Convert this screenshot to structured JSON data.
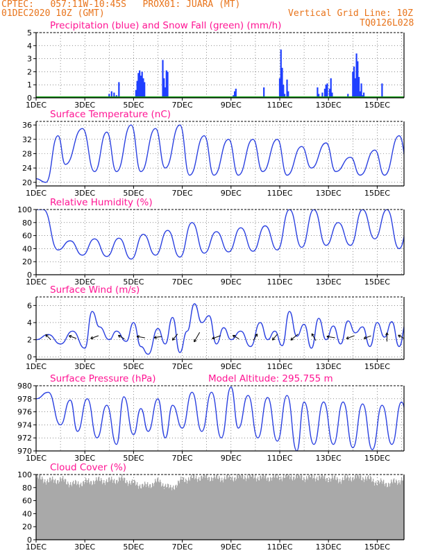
{
  "header": {
    "line1": "CPTEC:   057:11W-10:45S   PROX01: JUARA (MT)",
    "line2": "01DEC2020 10Z (GMT)",
    "grid_note": "Vertical Grid Line: 10Z",
    "code": "TQ0126L028"
  },
  "colors": {
    "header": "#e8731a",
    "panel_title": "#ff1493",
    "precip": "#1f3fff",
    "snow": "#11a011",
    "line": "#2a40e0",
    "cloud": "#a9a9a9",
    "arrow": "#000000"
  },
  "x_ticks": [
    "1DEC",
    "3DEC",
    "5DEC",
    "7DEC",
    "9DEC",
    "11DEC",
    "13DEC",
    "15DEC"
  ],
  "x_tick_days": [
    0,
    2,
    4,
    6,
    8,
    10,
    12,
    14
  ],
  "chart_data": [
    {
      "type": "bar",
      "title": "Precipitation (blue) and Snow Fall (green) (mm/h)",
      "ylim": [
        0,
        5
      ],
      "yticks": [
        0,
        1,
        2,
        3,
        4,
        5
      ],
      "x_days": [
        3.0,
        3.1,
        3.2,
        3.3,
        3.4,
        4.1,
        4.15,
        4.2,
        4.25,
        4.3,
        4.35,
        4.4,
        4.45,
        5.2,
        5.25,
        5.3,
        5.35,
        5.4,
        8.1,
        8.15,
        8.2,
        9.35,
        10.0,
        10.05,
        10.1,
        10.15,
        10.2,
        10.3,
        10.35,
        11.55,
        11.6,
        11.75,
        11.85,
        11.9,
        11.95,
        12.05,
        12.1,
        12.15,
        12.8,
        13.0,
        13.05,
        13.1,
        13.15,
        13.2,
        13.25,
        13.3,
        13.35,
        13.4,
        13.45,
        14.2
      ],
      "values": [
        0.3,
        0.5,
        0.4,
        0.2,
        1.2,
        0.6,
        1.3,
        1.9,
        2.1,
        1.7,
        2.0,
        1.5,
        1.2,
        2.9,
        1.5,
        0.8,
        2.1,
        2.0,
        0.2,
        0.5,
        0.7,
        0.8,
        1.5,
        3.7,
        2.3,
        1.0,
        0.3,
        1.4,
        0.5,
        0.8,
        0.3,
        0.4,
        0.7,
        1.0,
        1.1,
        0.7,
        1.5,
        0.4,
        0.3,
        2.0,
        2.4,
        1.5,
        3.4,
        2.8,
        1.6,
        0.5,
        1.1,
        0.2,
        0.4,
        1.1
      ],
      "snow_values": [
        0,
        0,
        0,
        0,
        0,
        0,
        0,
        0,
        0,
        0,
        0,
        0,
        0,
        0,
        0,
        0,
        0,
        0,
        0,
        0,
        0,
        0,
        0,
        0,
        0,
        0,
        0,
        0,
        0,
        0,
        0,
        0,
        0,
        0,
        0,
        0,
        0,
        0,
        0,
        0,
        0,
        0,
        0,
        0,
        0,
        0,
        0,
        0,
        0,
        0
      ]
    },
    {
      "type": "line",
      "title": "Surface Temperature (nC)",
      "ylim": [
        19,
        37
      ],
      "yticks": [
        20,
        24,
        28,
        32,
        36
      ],
      "x_days": [
        0.0,
        0.4,
        0.9,
        1.2,
        1.9,
        2.4,
        2.9,
        3.3,
        3.9,
        4.3,
        4.9,
        5.3,
        5.9,
        6.3,
        6.9,
        7.3,
        7.9,
        8.3,
        8.9,
        9.3,
        9.9,
        10.3,
        10.9,
        11.3,
        11.9,
        12.3,
        12.9,
        13.3,
        13.9,
        14.3,
        14.9,
        15.3,
        15.9,
        16.0
      ],
      "values": [
        21,
        20,
        33,
        25,
        35,
        23,
        34,
        23,
        36,
        23,
        35,
        24,
        36,
        22,
        33,
        22,
        32,
        22,
        32,
        23,
        32,
        22,
        30,
        24,
        31,
        23,
        27,
        22,
        29,
        22,
        33,
        23,
        35,
        32
      ]
    },
    {
      "type": "line",
      "title": "Relative Humidity (%)",
      "ylim": [
        0,
        100
      ],
      "yticks": [
        0,
        20,
        40,
        60,
        80,
        100
      ],
      "x_days": [
        0.0,
        0.3,
        0.9,
        1.4,
        1.9,
        2.4,
        2.9,
        3.4,
        3.9,
        4.4,
        4.9,
        5.4,
        5.9,
        6.4,
        6.9,
        7.4,
        7.9,
        8.4,
        8.9,
        9.4,
        9.9,
        10.4,
        10.9,
        11.4,
        11.9,
        12.4,
        12.9,
        13.4,
        13.9,
        14.4,
        14.9,
        15.4,
        15.9,
        16.0
      ],
      "values": [
        100,
        100,
        38,
        52,
        30,
        55,
        28,
        56,
        24,
        62,
        30,
        68,
        27,
        80,
        33,
        66,
        35,
        72,
        36,
        75,
        38,
        100,
        42,
        100,
        45,
        80,
        45,
        100,
        55,
        100,
        40,
        100,
        32,
        38
      ]
    },
    {
      "type": "line",
      "title": "Surface Wind (m/s)",
      "ylim": [
        -0.3,
        7
      ],
      "yticks": [
        0,
        2,
        4,
        6
      ],
      "x_days": [
        0.0,
        0.5,
        1.0,
        1.5,
        2.0,
        2.3,
        2.6,
        3.0,
        3.3,
        3.7,
        4.0,
        4.3,
        4.6,
        5.0,
        5.3,
        5.6,
        5.9,
        6.2,
        6.5,
        6.8,
        7.1,
        7.4,
        7.7,
        8.0,
        8.4,
        8.8,
        9.2,
        9.5,
        9.8,
        10.1,
        10.4,
        10.7,
        11.0,
        11.3,
        11.6,
        11.9,
        12.2,
        12.5,
        12.8,
        13.1,
        13.4,
        13.7,
        14.0,
        14.3,
        14.6,
        14.9,
        15.2,
        15.5,
        15.8,
        16.0
      ],
      "values": [
        2.0,
        2.6,
        1.5,
        3.0,
        1.0,
        5.3,
        3.5,
        2.0,
        3.0,
        1.8,
        4.0,
        1.2,
        0.3,
        3.3,
        1.5,
        4.6,
        0.5,
        3.0,
        6.2,
        4.0,
        4.8,
        1.5,
        3.4,
        2.0,
        3.0,
        1.2,
        4.0,
        2.0,
        3.0,
        1.3,
        5.3,
        2.4,
        3.8,
        1.0,
        4.5,
        2.0,
        3.6,
        1.5,
        4.2,
        2.8,
        3.5,
        1.2,
        4.0,
        2.3,
        4.1,
        1.2,
        4.1,
        0.8,
        4.3,
        2.5
      ],
      "arrow_days": [
        0.5,
        1.5,
        2.4,
        3.5,
        4.3,
        5.0,
        5.7,
        6.6,
        7.4,
        8.2,
        9.0,
        9.8,
        10.6,
        11.4,
        12.1,
        12.9,
        13.6,
        14.4,
        15.0
      ],
      "arrow_dirs_deg": [
        135,
        160,
        200,
        150,
        170,
        190,
        230,
        240,
        200,
        150,
        60,
        230,
        220,
        120,
        170,
        200,
        200,
        90,
        150
      ],
      "arrow_speeds": [
        2.3,
        2.6,
        3.0,
        2.2,
        3.0,
        2.5,
        2.8,
        5.0,
        3.5,
        2.2,
        2.3,
        2.6,
        3.8,
        2.8,
        3.0,
        3.2,
        2.5,
        3.4,
        2.6
      ]
    },
    {
      "type": "line",
      "title": "Surface Pressure (hPa)",
      "subtitle": "Model Altitude: 295.755  m",
      "ylim": [
        970,
        980
      ],
      "yticks": [
        970,
        972,
        974,
        976,
        978,
        980
      ],
      "x_days": [
        0.0,
        0.5,
        1.0,
        1.4,
        1.7,
        2.1,
        2.5,
        2.9,
        3.3,
        3.6,
        4.0,
        4.3,
        4.6,
        5.0,
        5.3,
        5.6,
        6.0,
        6.4,
        6.8,
        7.2,
        7.6,
        8.0,
        8.3,
        8.7,
        9.1,
        9.5,
        9.9,
        10.3,
        10.7,
        11.0,
        11.4,
        11.8,
        12.2,
        12.6,
        13.0,
        13.4,
        13.8,
        14.2,
        14.6,
        15.0,
        15.4,
        15.8,
        16.0
      ],
      "values": [
        978.0,
        979.0,
        974.0,
        977.8,
        973.0,
        978.0,
        972.0,
        977.0,
        971.0,
        978.3,
        972.5,
        976.5,
        973.0,
        978.0,
        972.0,
        977.0,
        973.5,
        979.0,
        973.0,
        979.0,
        972.0,
        979.8,
        973.5,
        978.5,
        972.0,
        978.2,
        971.5,
        978.5,
        970.0,
        977.5,
        971.0,
        977.5,
        971.0,
        977.5,
        970.5,
        977.2,
        970.2,
        977.0,
        971.0,
        977.5,
        970.0,
        977.5,
        974.0
      ]
    },
    {
      "type": "area",
      "title": "Cloud Cover (%)",
      "ylim": [
        0,
        100
      ],
      "yticks": [
        0,
        20,
        40,
        60,
        80,
        100
      ],
      "x_days": [
        0.0,
        0.5,
        1.0,
        1.5,
        2.0,
        2.5,
        3.0,
        3.5,
        4.0,
        4.5,
        5.0,
        5.5,
        6.0,
        6.5,
        7.0,
        7.5,
        8.0,
        8.5,
        9.0,
        9.5,
        10.0,
        10.5,
        11.0,
        11.5,
        12.0,
        12.5,
        13.0,
        13.5,
        14.0,
        14.5,
        15.0,
        15.5,
        16.0
      ],
      "values": [
        95,
        90,
        92,
        85,
        88,
        91,
        90,
        93,
        86,
        82,
        90,
        78,
        92,
        95,
        96,
        94,
        95,
        97,
        96,
        95,
        96,
        97,
        95,
        96,
        94,
        92,
        96,
        95,
        88,
        86,
        92,
        96,
        97
      ]
    }
  ]
}
